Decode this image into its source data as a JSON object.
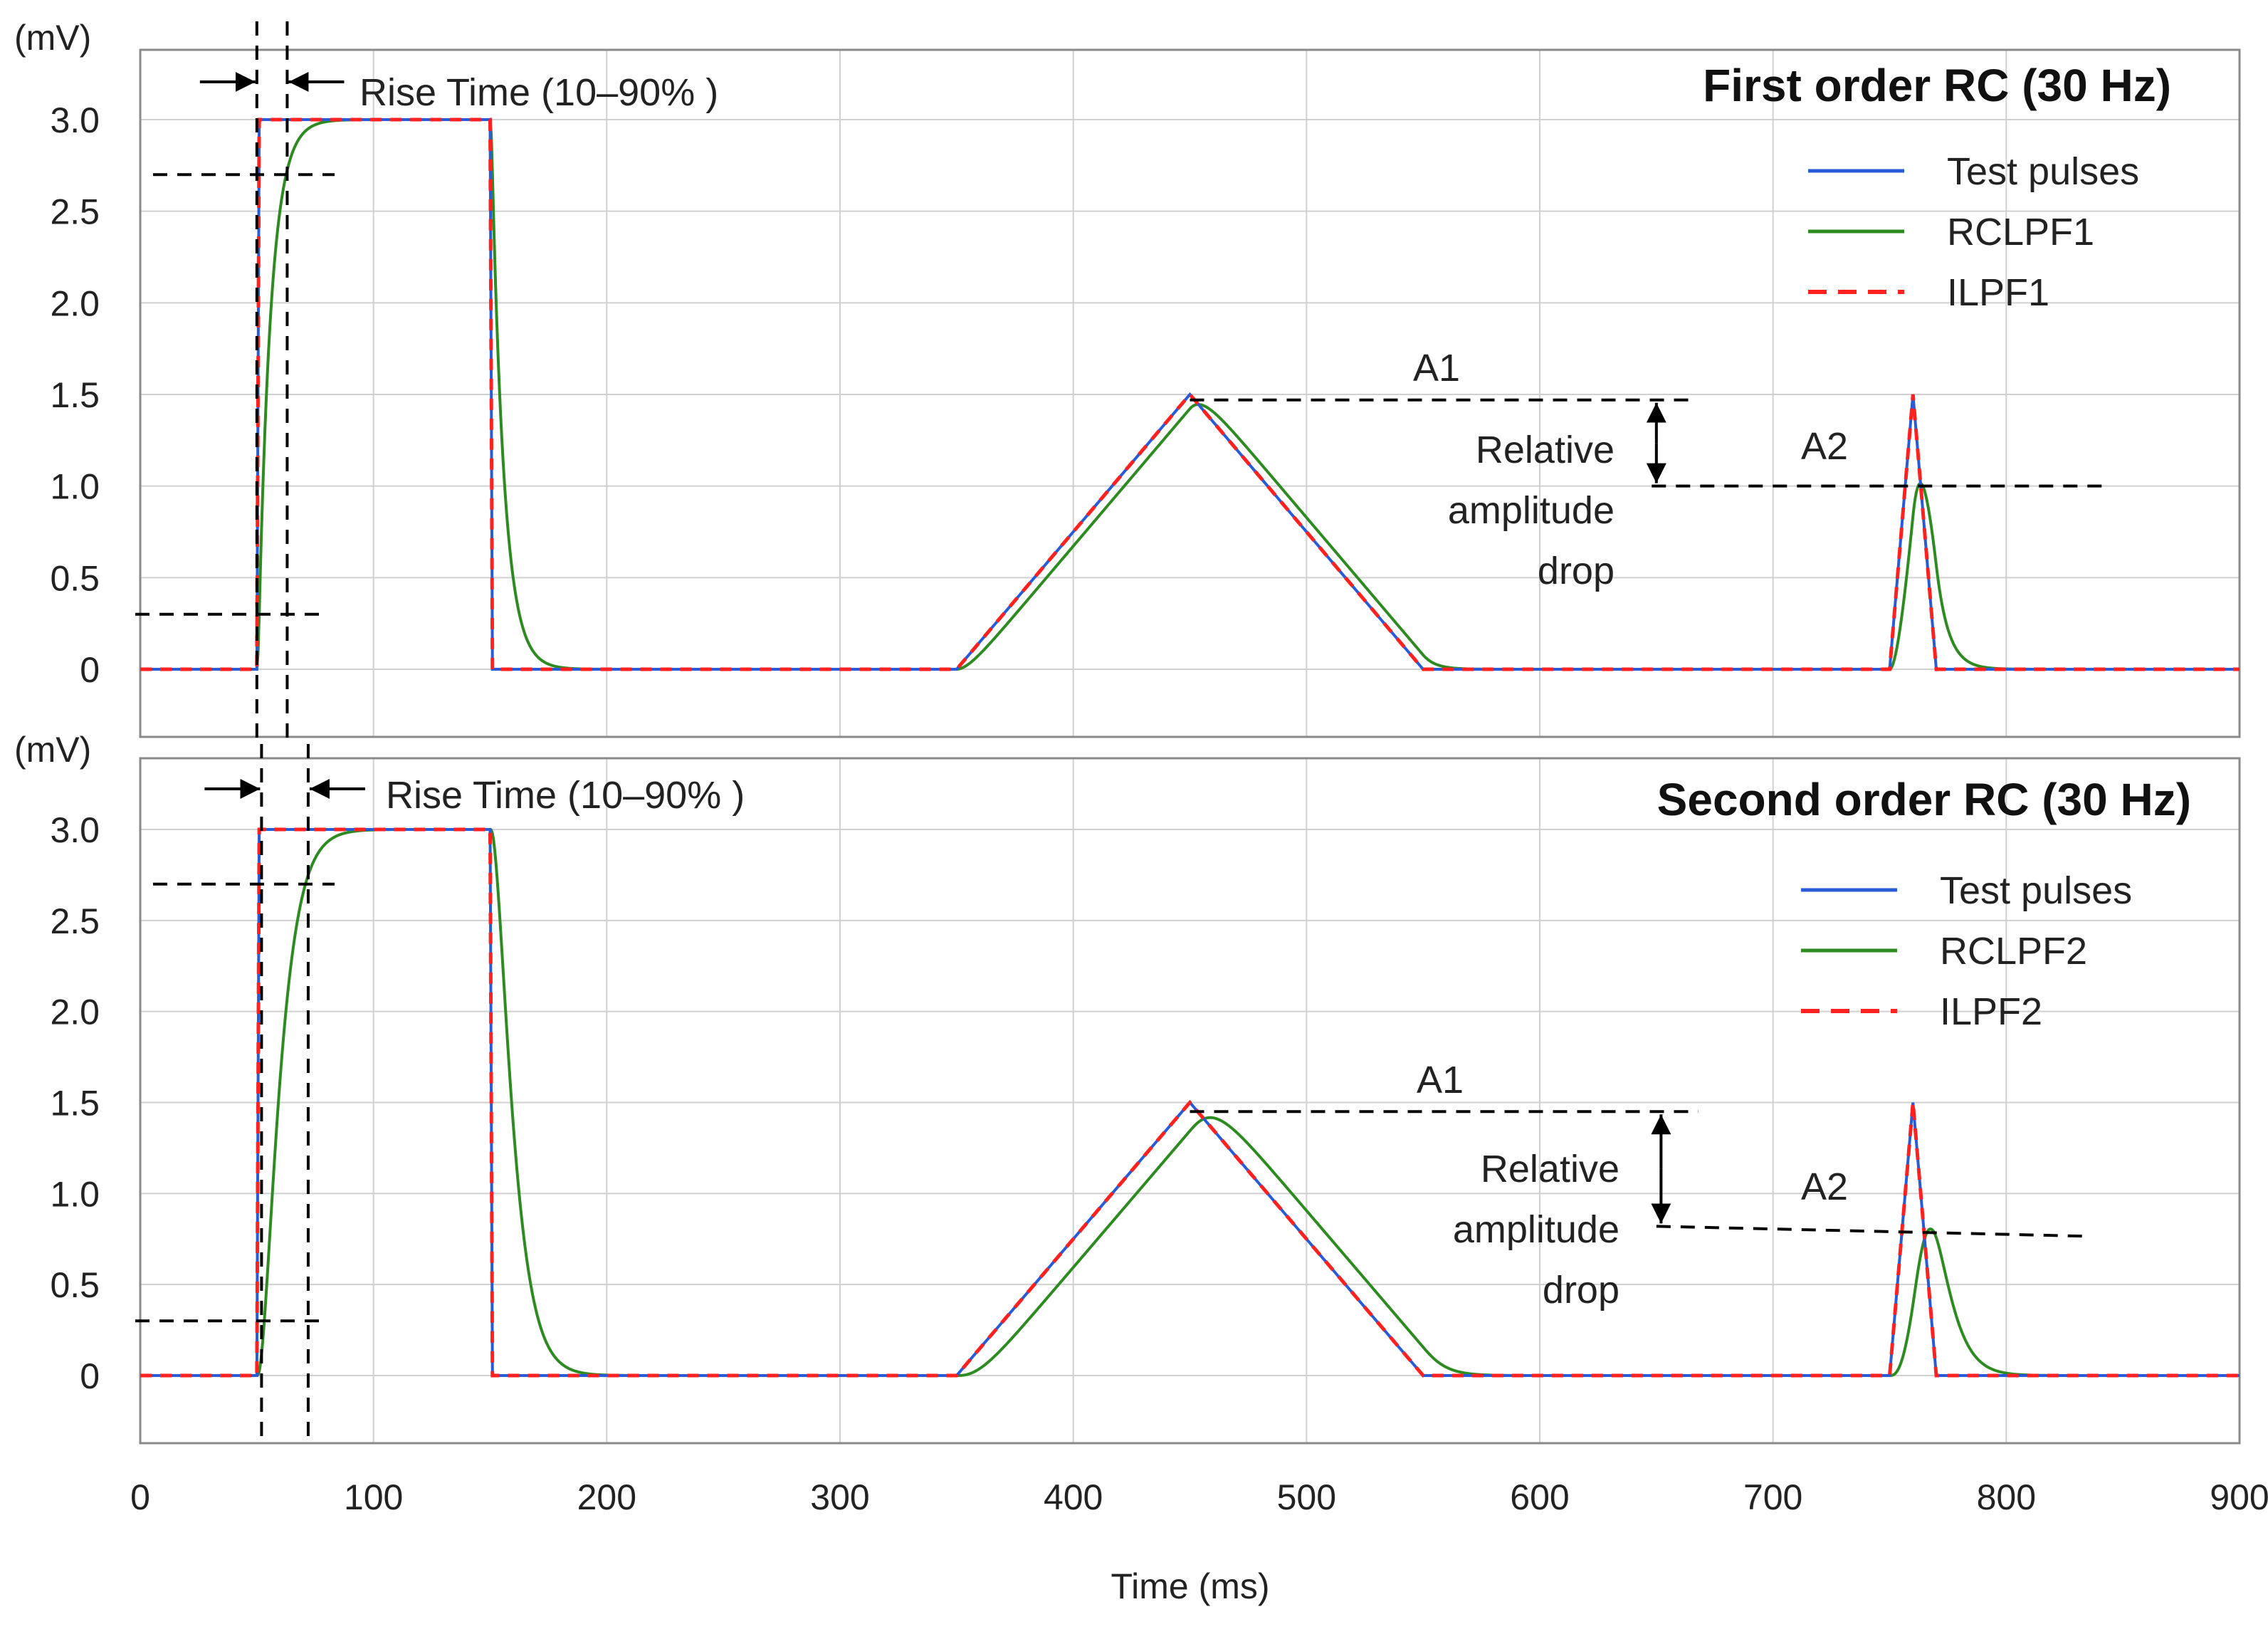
{
  "chart_data": [
    {
      "type": "line",
      "title": "First order RC (30 Hz)",
      "ylabel": "(mV)",
      "xlim": [
        0,
        900
      ],
      "ylim": [
        -0.35,
        3.4
      ],
      "yticks": [
        0,
        0.5,
        1.0,
        1.5,
        2.0,
        2.5,
        3.0
      ],
      "ytick_labels": [
        "0",
        "0.5",
        "1.0",
        "1.5",
        "2.0",
        "2.5",
        "3.0"
      ],
      "grid": true,
      "legend_position": "top-right",
      "legend": [
        "Test pulses",
        "RCLPF1",
        "ILPF1"
      ],
      "series": [
        {
          "name": "Test pulses",
          "color": "#2a5bd7",
          "style": "solid",
          "x": [
            0,
            50,
            51,
            150,
            151,
            350,
            450,
            550,
            750,
            760,
            770,
            900
          ],
          "y": [
            0,
            0,
            3.0,
            3.0,
            0,
            0,
            1.5,
            0,
            0,
            1.5,
            0,
            0
          ]
        },
        {
          "name": "RCLPF1",
          "color": "#2e8b22",
          "style": "solid",
          "order": 1,
          "cutoff_hz": 30,
          "x": [
            0,
            900
          ],
          "y": [
            0,
            0
          ]
        },
        {
          "name": "ILPF1",
          "color": "#ff2020",
          "style": "dashed",
          "x": [
            0,
            50,
            51,
            150,
            151,
            350,
            450,
            550,
            750,
            760,
            770,
            900
          ],
          "y": [
            0,
            0,
            3.0,
            3.0,
            0,
            0,
            1.5,
            0,
            0,
            1.5,
            0,
            0
          ]
        }
      ],
      "annotations": {
        "rise_time": "Rise Time (10–90% )",
        "a1": "A1",
        "a2": "A2",
        "drop_line1": "Relative",
        "drop_line2": "amplitude",
        "drop_line3": "drop",
        "a1_level": 1.47,
        "a2_level": 1.0,
        "rise_x_start": 50,
        "rise_x_end": 63
      }
    },
    {
      "type": "line",
      "title": "Second order RC (30 Hz)",
      "ylabel": "(mV)",
      "xlabel": "Time (ms)",
      "xlim": [
        0,
        900
      ],
      "ylim": [
        -0.35,
        3.4
      ],
      "xticks": [
        0,
        100,
        200,
        300,
        400,
        500,
        600,
        700,
        800,
        900
      ],
      "xtick_labels": [
        "0",
        "100",
        "200",
        "300",
        "400",
        "500",
        "600",
        "700",
        "800",
        "900"
      ],
      "yticks": [
        0,
        0.5,
        1.0,
        1.5,
        2.0,
        2.5,
        3.0
      ],
      "ytick_labels": [
        "0",
        "0.5",
        "1.0",
        "1.5",
        "2.0",
        "2.5",
        "3.0"
      ],
      "grid": true,
      "legend_position": "top-right",
      "legend": [
        "Test pulses",
        "RCLPF2",
        "ILPF2"
      ],
      "series": [
        {
          "name": "Test pulses",
          "color": "#2a5bd7",
          "style": "solid",
          "x": [
            0,
            50,
            51,
            150,
            151,
            350,
            450,
            550,
            750,
            760,
            770,
            900
          ],
          "y": [
            0,
            0,
            3.0,
            3.0,
            0,
            0,
            1.5,
            0,
            0,
            1.5,
            0,
            0
          ]
        },
        {
          "name": "RCLPF2",
          "color": "#2e8b22",
          "style": "solid",
          "order": 2,
          "cutoff_hz": 30,
          "x": [
            0,
            900
          ],
          "y": [
            0,
            0
          ]
        },
        {
          "name": "ILPF2",
          "color": "#ff2020",
          "style": "dashed",
          "x": [
            0,
            50,
            51,
            150,
            151,
            350,
            450,
            550,
            750,
            760,
            770,
            900
          ],
          "y": [
            0,
            0,
            3.0,
            3.0,
            0,
            0,
            1.5,
            0,
            0,
            1.5,
            0,
            0
          ]
        }
      ],
      "annotations": {
        "rise_time": "Rise Time (10–90% )",
        "a1": "A1",
        "a2": "A2",
        "drop_line1": "Relative",
        "drop_line2": "amplitude",
        "drop_line3": "drop",
        "a1_level": 1.45,
        "a2_level": 0.82,
        "rise_x_start": 52,
        "rise_x_end": 72
      }
    }
  ]
}
